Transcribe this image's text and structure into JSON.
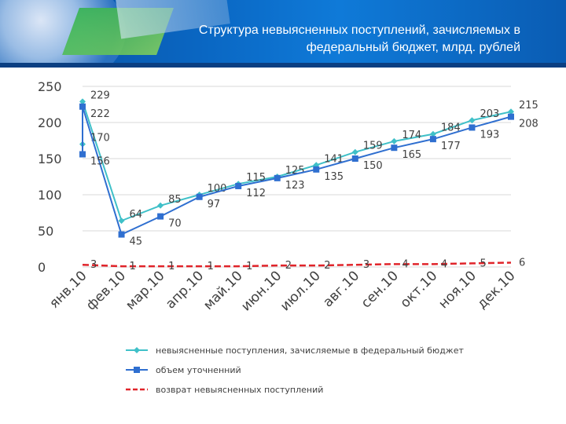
{
  "slide": {
    "title_line1": "Структура невыясненных поступлений, зачисляемых в",
    "title_line2": "федеральный бюджет, млрд. рублей"
  },
  "colors": {
    "series1": "#3fc0c8",
    "series2": "#2f6fd0",
    "series3": "#e0242a",
    "header": "#0a66c2"
  },
  "chart_data": {
    "type": "line",
    "categories": [
      "янв.10",
      "фев.10",
      "мар.10",
      "апр.10",
      "май.10",
      "июн.10",
      "июл.10",
      "авг.10",
      "сен.10",
      "окт.10",
      "ноя.10",
      "дек.10"
    ],
    "ylim": [
      0,
      250
    ],
    "yticks": [
      0,
      50,
      100,
      150,
      200,
      250
    ],
    "grid": true,
    "legend_position": "bottom",
    "series": [
      {
        "name": "невыясненные поступления, зачисляемые в федеральный бюджет",
        "marker": "diamond",
        "values": [
          229,
          64,
          85,
          100,
          115,
          125,
          141,
          159,
          174,
          184,
          203,
          215
        ],
        "extra_points": [
          {
            "x": 0,
            "y": 170
          }
        ]
      },
      {
        "name": "объем уточненний",
        "marker": "square",
        "values": [
          222,
          45,
          70,
          97,
          112,
          123,
          135,
          150,
          165,
          177,
          193,
          208
        ],
        "extra_points": [
          {
            "x": 0,
            "y": 156
          }
        ]
      },
      {
        "name": "возврат невыясненных поступлений",
        "marker": "none",
        "style": "dashed",
        "values": [
          3,
          1,
          1,
          1,
          1,
          2,
          2,
          3,
          4,
          4,
          5,
          6
        ]
      }
    ]
  }
}
